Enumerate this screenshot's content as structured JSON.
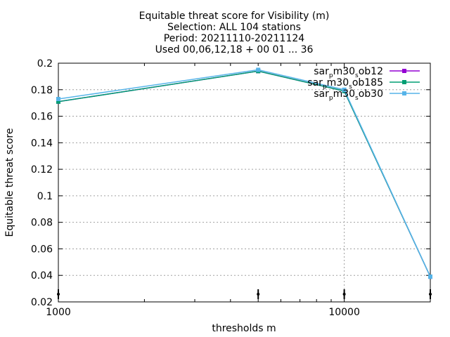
{
  "chart_data": {
    "type": "line",
    "title_lines": [
      "Equitable threat score  for Visibility (m)",
      "Selection: ALL     104 stations",
      "Period: 20211110-20211124",
      "Used 00,06,12,18 + 00 01 ... 36"
    ],
    "xlabel": "thresholds m",
    "ylabel": "Equitable threat score",
    "x_scale": "log",
    "xlim": [
      1000,
      20000
    ],
    "ylim": [
      0.02,
      0.2
    ],
    "x_ticks": [
      1000,
      10000
    ],
    "x_tick_labels": [
      "1000",
      "10000"
    ],
    "y_ticks": [
      0.02,
      0.04,
      0.06,
      0.08,
      0.1,
      0.12,
      0.14,
      0.16,
      0.18,
      0.2
    ],
    "y_tick_labels": [
      "0.02",
      "0.04",
      "0.06",
      "0.08",
      "0.1",
      "0.12",
      "0.14",
      "0.16",
      "0.18",
      "0.2"
    ],
    "grid": true,
    "legend_position": "top-right",
    "x": [
      1000,
      5000,
      10000,
      20000
    ],
    "series": [
      {
        "name": "sar_pm30_sob12",
        "label_parts": [
          "sar",
          "p",
          "m30",
          "s",
          "ob12"
        ],
        "color": "#9400d3",
        "values": [
          0.171,
          0.194,
          0.179,
          0.039
        ]
      },
      {
        "name": "sar_pm30_sob185",
        "label_parts": [
          "sar",
          "p",
          "m30",
          "s",
          "ob185"
        ],
        "color": "#009e73",
        "values": [
          0.171,
          0.194,
          0.179,
          0.039
        ]
      },
      {
        "name": "sar_pm30_sob30",
        "label_parts": [
          "sar",
          "p",
          "m30",
          "s",
          "ob30"
        ],
        "color": "#56b4e9",
        "values": [
          0.173,
          0.195,
          0.18,
          0.039
        ]
      }
    ],
    "sample_markers_x": [
      1000,
      5000,
      10000,
      20000
    ]
  }
}
